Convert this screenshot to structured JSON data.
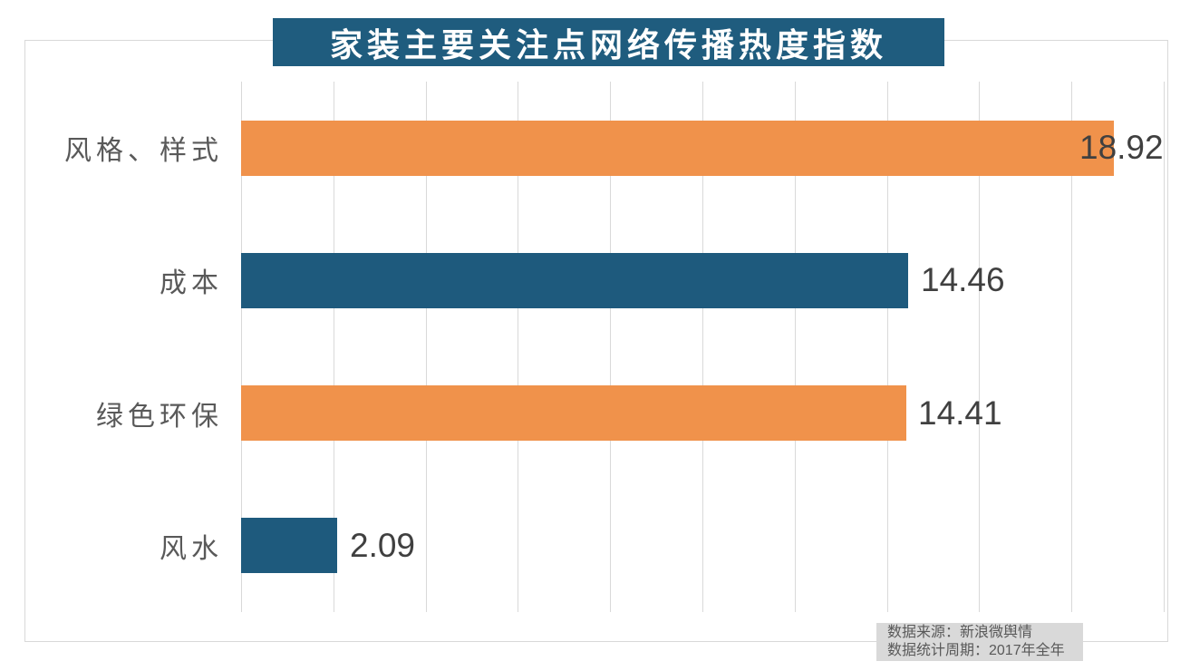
{
  "title": "家装主要关注点网络传播热度指数",
  "source_note": {
    "line1": "数据来源：新浪微舆情",
    "line2": "数据统计周期：2017年全年"
  },
  "colors": {
    "title_bg": "#1F5C7E",
    "title_text": "#FFFFFF",
    "bar_teal": "#1E5A7D",
    "bar_orange": "#F0924B",
    "gridline": "#D9D9D9",
    "chart_border": "#D9D9D9",
    "category_label": "#595959",
    "value_label": "#404040",
    "source_bg": "#D9D9D9",
    "source_text": "#595959"
  },
  "chart_data": {
    "type": "bar",
    "orientation": "horizontal",
    "title": "家装主要关注点网络传播热度指数",
    "categories": [
      "风格、样式",
      "成本",
      "绿色环保",
      "风水"
    ],
    "values": [
      18.92,
      14.46,
      14.41,
      2.09
    ],
    "value_labels": [
      "18.92",
      "14.46",
      "14.41",
      "2.09"
    ],
    "bar_colors": [
      "#F0924B",
      "#1E5A7D",
      "#F0924B",
      "#1E5A7D"
    ],
    "xlim": [
      0,
      20
    ],
    "gridline_step": 2,
    "grid": "vertical",
    "legend": "none",
    "axis_tick_labels": "none",
    "ylabel": "",
    "xlabel": ""
  }
}
